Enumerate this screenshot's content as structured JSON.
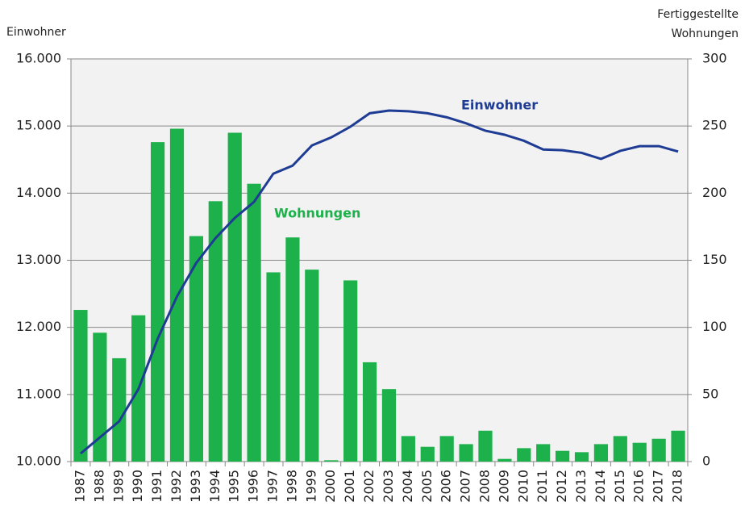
{
  "chart_data": {
    "type": "bar",
    "y_label": "Einwohner",
    "y2_label": [
      "Fertiggestellte",
      "Wohnungen"
    ],
    "categories": [
      "1987",
      "1988",
      "1989",
      "1990",
      "1991",
      "1992",
      "1993",
      "1994",
      "1995",
      "1996",
      "1997",
      "1998",
      "1999",
      "2000",
      "2001",
      "2002",
      "2003",
      "2004",
      "2005",
      "2006",
      "2007",
      "2008",
      "2009",
      "2010",
      "2011",
      "2012",
      "2013",
      "2014",
      "2015",
      "2016",
      "2017",
      "2018"
    ],
    "series": [
      {
        "name": "Wohnungen",
        "type": "bar",
        "axis": "y2",
        "color": "#1db14b",
        "values": [
          113,
          96,
          77,
          109,
          238,
          248,
          168,
          194,
          245,
          207,
          141,
          167,
          143,
          1,
          135,
          74,
          54,
          19,
          11,
          19,
          13,
          23,
          2,
          10,
          13,
          8,
          7,
          13,
          19,
          14,
          17,
          23
        ]
      },
      {
        "name": "Einwohner",
        "type": "line",
        "axis": "y",
        "color": "#1f3c94",
        "values": [
          10120,
          10360,
          10600,
          11080,
          11830,
          12460,
          12960,
          13330,
          13630,
          13870,
          14290,
          14410,
          14710,
          14830,
          14990,
          15190,
          15230,
          15220,
          15190,
          15130,
          15040,
          14930,
          14870,
          14780,
          14650,
          14640,
          14600,
          14510,
          14630,
          14700,
          14700,
          14620
        ]
      }
    ],
    "ylim": [
      10000,
      16000
    ],
    "yticks": [
      {
        "value": 10000,
        "label": "10.000"
      },
      {
        "value": 11000,
        "label": "11.000"
      },
      {
        "value": 12000,
        "label": "12.000"
      },
      {
        "value": 13000,
        "label": "13.000"
      },
      {
        "value": 14000,
        "label": "14.000"
      },
      {
        "value": 15000,
        "label": "15.000"
      },
      {
        "value": 16000,
        "label": "16.000"
      }
    ],
    "y2lim": [
      0,
      300
    ],
    "y2ticks": [
      0,
      50,
      100,
      150,
      200,
      250,
      300
    ],
    "grid": true
  }
}
